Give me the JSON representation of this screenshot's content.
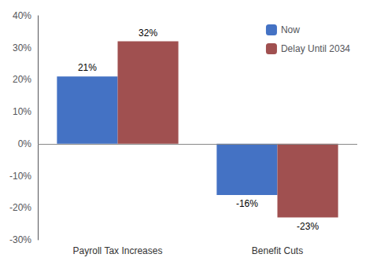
{
  "chart_data": {
    "type": "bar",
    "categories": [
      "Payroll Tax Increases",
      "Benefit Cuts"
    ],
    "series": [
      {
        "name": "Now",
        "color": "#4472C4",
        "values": [
          21,
          -16
        ],
        "value_labels": [
          "21%",
          "-16%"
        ]
      },
      {
        "name": "Delay Until 2034",
        "color": "#A05050",
        "values": [
          32,
          -23
        ],
        "value_labels": [
          "32%",
          "-23%"
        ]
      }
    ],
    "ylim": [
      -30,
      40
    ],
    "yticks": [
      {
        "value": -30,
        "label": "-30%"
      },
      {
        "value": -20,
        "label": "-20%"
      },
      {
        "value": -10,
        "label": "-10%"
      },
      {
        "value": 0,
        "label": "0%"
      },
      {
        "value": 10,
        "label": "10%"
      },
      {
        "value": 20,
        "label": "20%"
      },
      {
        "value": 30,
        "label": "30%"
      },
      {
        "value": 40,
        "label": "40%"
      }
    ],
    "grid": false,
    "legend": "upper right",
    "data_labels": true
  }
}
